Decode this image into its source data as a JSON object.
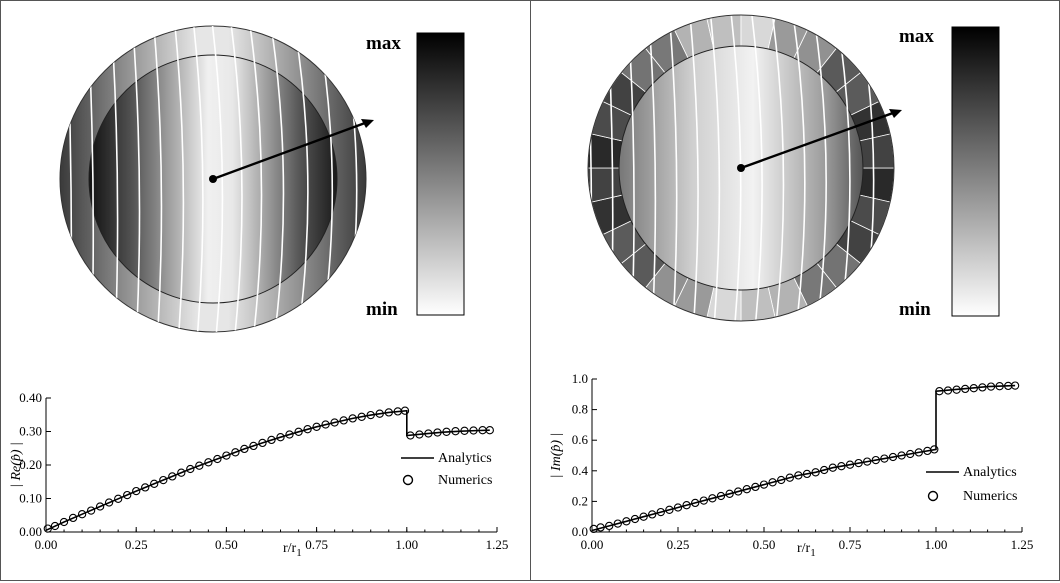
{
  "colors": {
    "line": "#000000",
    "marker_stroke": "#000000",
    "colorbar_max": "#000000",
    "colorbar_min": "#ffffff",
    "contour": "#ffffff",
    "ylabel_left": "#6a6aa8"
  },
  "panels": {
    "left": {
      "colorbar": {
        "max_label": "max",
        "min_label": "min"
      }
    },
    "right": {
      "colorbar": {
        "max_label": "max",
        "min_label": "min"
      }
    }
  },
  "chart_data": [
    {
      "type": "line",
      "title": "",
      "xlabel": "r/r",
      "xlabel_subscript": "1",
      "ylabel": "| Re(p̂) |",
      "xlim": [
        0,
        1.25
      ],
      "ylim": [
        0,
        0.4
      ],
      "xticks": [
        "0.00",
        "0.25",
        "0.50",
        "0.75",
        "1.00",
        "1.25"
      ],
      "yticks": [
        "0.00",
        "0.10",
        "0.20",
        "0.30",
        "0.40"
      ],
      "grid": false,
      "legend_position": "right",
      "series": [
        {
          "name": "Analytics",
          "style": "line",
          "x": [
            0,
            0.05,
            0.1,
            0.15,
            0.2,
            0.25,
            0.3,
            0.35,
            0.4,
            0.45,
            0.5,
            0.55,
            0.6,
            0.65,
            0.7,
            0.75,
            0.8,
            0.85,
            0.9,
            0.95,
            1.0,
            1.0,
            1.05,
            1.1,
            1.15,
            1.2,
            1.23
          ],
          "y": [
            0.005,
            0.03,
            0.053,
            0.076,
            0.099,
            0.122,
            0.144,
            0.166,
            0.188,
            0.208,
            0.228,
            0.248,
            0.266,
            0.283,
            0.299,
            0.314,
            0.327,
            0.339,
            0.349,
            0.357,
            0.362,
            0.288,
            0.293,
            0.298,
            0.301,
            0.303,
            0.304
          ]
        },
        {
          "name": "Numerics",
          "style": "markers",
          "x": [
            0.005,
            0.025,
            0.05,
            0.075,
            0.1,
            0.125,
            0.15,
            0.175,
            0.2,
            0.225,
            0.25,
            0.275,
            0.3,
            0.325,
            0.35,
            0.375,
            0.4,
            0.425,
            0.45,
            0.475,
            0.5,
            0.525,
            0.55,
            0.575,
            0.6,
            0.625,
            0.65,
            0.675,
            0.7,
            0.725,
            0.75,
            0.775,
            0.8,
            0.825,
            0.85,
            0.875,
            0.9,
            0.925,
            0.95,
            0.975,
            0.995,
            1.01,
            1.035,
            1.06,
            1.085,
            1.11,
            1.135,
            1.16,
            1.185,
            1.21,
            1.23
          ],
          "y": [
            0.01,
            0.018,
            0.03,
            0.042,
            0.053,
            0.064,
            0.076,
            0.088,
            0.099,
            0.11,
            0.122,
            0.133,
            0.144,
            0.155,
            0.166,
            0.177,
            0.188,
            0.198,
            0.208,
            0.218,
            0.228,
            0.238,
            0.248,
            0.257,
            0.266,
            0.275,
            0.283,
            0.291,
            0.299,
            0.307,
            0.314,
            0.321,
            0.327,
            0.333,
            0.339,
            0.344,
            0.349,
            0.353,
            0.357,
            0.36,
            0.362,
            0.288,
            0.291,
            0.294,
            0.297,
            0.299,
            0.301,
            0.302,
            0.303,
            0.304,
            0.304
          ]
        }
      ]
    },
    {
      "type": "line",
      "title": "",
      "xlabel": "r/r",
      "xlabel_subscript": "1",
      "ylabel": "| Im(p̂) |",
      "xlim": [
        0,
        1.25
      ],
      "ylim": [
        0,
        1.0
      ],
      "xticks": [
        "0.00",
        "0.25",
        "0.50",
        "0.75",
        "1.00",
        "1.25"
      ],
      "yticks": [
        "0.0",
        "0.2",
        "0.4",
        "0.6",
        "0.8",
        "1.0"
      ],
      "grid": false,
      "legend_position": "right",
      "series": [
        {
          "name": "Analytics",
          "style": "line",
          "x": [
            0,
            0.05,
            0.1,
            0.15,
            0.2,
            0.25,
            0.3,
            0.35,
            0.4,
            0.45,
            0.5,
            0.55,
            0.6,
            0.65,
            0.7,
            0.75,
            0.8,
            0.85,
            0.9,
            0.95,
            1.0,
            1.0,
            1.05,
            1.1,
            1.15,
            1.2,
            1.23
          ],
          "y": [
            0.01,
            0.04,
            0.07,
            0.1,
            0.13,
            0.16,
            0.19,
            0.22,
            0.25,
            0.28,
            0.31,
            0.34,
            0.37,
            0.39,
            0.42,
            0.44,
            0.46,
            0.48,
            0.5,
            0.52,
            0.54,
            0.92,
            0.93,
            0.94,
            0.95,
            0.955,
            0.957
          ]
        },
        {
          "name": "Numerics",
          "style": "markers",
          "x": [
            0.005,
            0.025,
            0.05,
            0.075,
            0.1,
            0.125,
            0.15,
            0.175,
            0.2,
            0.225,
            0.25,
            0.275,
            0.3,
            0.325,
            0.35,
            0.375,
            0.4,
            0.425,
            0.45,
            0.475,
            0.5,
            0.525,
            0.55,
            0.575,
            0.6,
            0.625,
            0.65,
            0.675,
            0.7,
            0.725,
            0.75,
            0.775,
            0.8,
            0.825,
            0.85,
            0.875,
            0.9,
            0.925,
            0.95,
            0.975,
            0.995,
            1.01,
            1.035,
            1.06,
            1.085,
            1.11,
            1.135,
            1.16,
            1.185,
            1.21,
            1.23
          ],
          "y": [
            0.02,
            0.03,
            0.04,
            0.055,
            0.07,
            0.085,
            0.1,
            0.115,
            0.13,
            0.145,
            0.16,
            0.175,
            0.19,
            0.205,
            0.22,
            0.235,
            0.25,
            0.265,
            0.28,
            0.295,
            0.31,
            0.325,
            0.34,
            0.355,
            0.37,
            0.38,
            0.39,
            0.405,
            0.42,
            0.43,
            0.44,
            0.45,
            0.46,
            0.47,
            0.48,
            0.49,
            0.5,
            0.51,
            0.52,
            0.53,
            0.54,
            0.92,
            0.925,
            0.93,
            0.935,
            0.94,
            0.945,
            0.95,
            0.953,
            0.955,
            0.957
          ]
        }
      ]
    }
  ]
}
